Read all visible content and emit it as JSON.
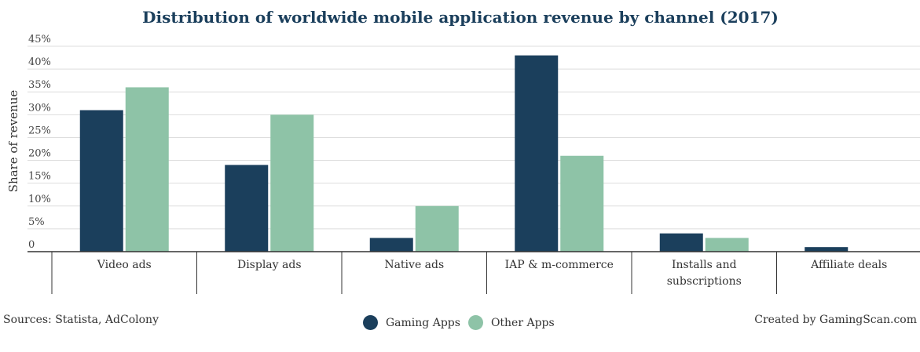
{
  "chart_data": {
    "type": "bar",
    "title": "Distribution of worldwide mobile application revenue by channel (2017)",
    "ylabel": "Share of revenue",
    "xlabel": "",
    "ylim": [
      0,
      45
    ],
    "yticks": [
      "0",
      "5%",
      "10%",
      "15%",
      "20%",
      "25%",
      "30%",
      "35%",
      "40%",
      "45%"
    ],
    "categories": [
      [
        "Video ads"
      ],
      [
        "Display ads"
      ],
      [
        "Native ads"
      ],
      [
        "IAP & m-commerce"
      ],
      [
        "Installs and",
        "subscriptions"
      ],
      [
        "Affiliate deals"
      ]
    ],
    "series": [
      {
        "name": "Gaming Apps",
        "color": "#1b3f5c",
        "values": [
          31,
          19,
          3,
          43,
          4,
          1
        ]
      },
      {
        "name": "Other Apps",
        "color": "#8ec3a7",
        "values": [
          36,
          30,
          10,
          21,
          3,
          0
        ]
      }
    ],
    "grid": true,
    "legend": "bottom-center"
  },
  "footer": {
    "source": "Sources: Statista, AdColony",
    "credit": "Created by GamingScan.com"
  }
}
